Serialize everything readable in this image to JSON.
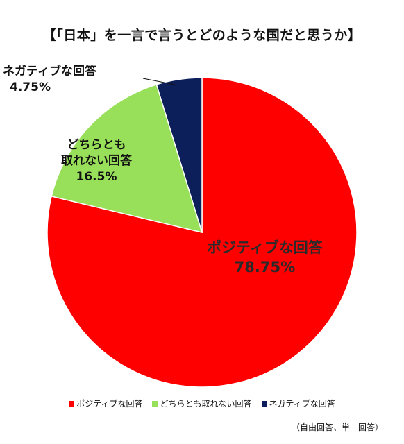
{
  "chart_data": {
    "type": "pie",
    "title": "【「日本」を一言で言うとどのような国だと思うか】",
    "categories": [
      "ポジティブな回答",
      "どちらとも取れない回答",
      "ネガティブな回答"
    ],
    "values": [
      78.75,
      16.5,
      4.75
    ],
    "value_labels": [
      "78.75%",
      "16.5%",
      "4.75%"
    ],
    "slice_labels": [
      {
        "lines": [
          "ポジティブな回答"
        ],
        "value": "78.75%"
      },
      {
        "lines": [
          "どちらとも",
          "取れない回答"
        ],
        "value": "16.5%"
      },
      {
        "lines": [
          "ネガティブな回答"
        ],
        "value": "4.75%"
      }
    ],
    "colors": [
      "#ff0000",
      "#99e05a",
      "#0c1f5a"
    ],
    "start_angle_deg": 0,
    "direction": "clockwise",
    "legend_position": "bottom",
    "footnote": "（自由回答、単一回答）"
  }
}
